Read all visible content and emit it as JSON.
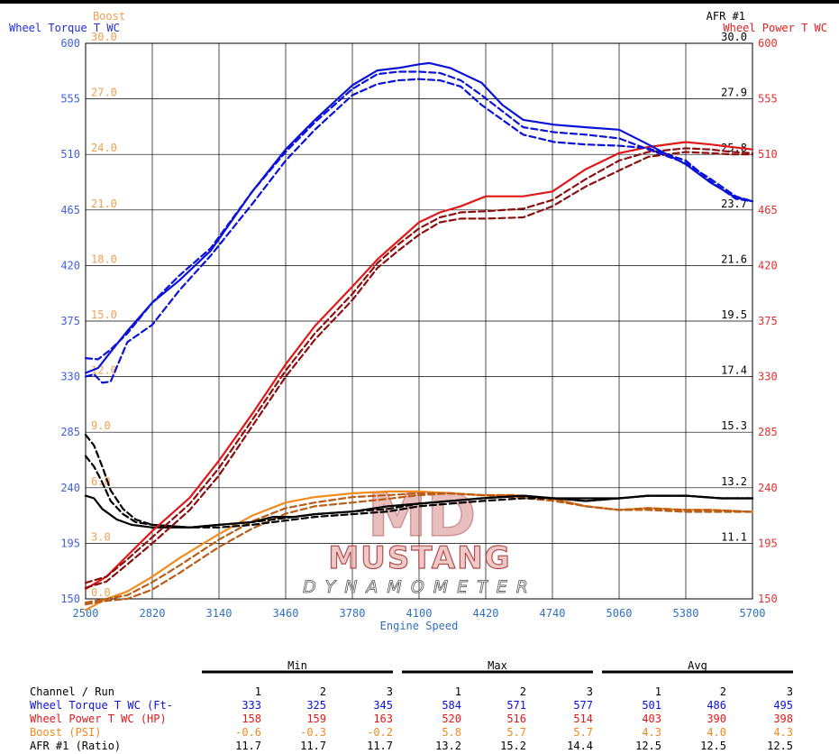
{
  "colors": {
    "torque": "#0a12d8",
    "power": "#e01818",
    "power_dark": "#8b1010",
    "boost": "#f28a1e",
    "boost_dark": "#b85e18",
    "afr": "#000000",
    "torque_axis": "#4060e0",
    "power_axis": "#e03030",
    "boost_axis": "#f0a050",
    "watermark": "#d07878"
  },
  "header": {
    "boost_label": "Boost",
    "torque_label": "Wheel Torque T WC",
    "afr_label": "AFR #1",
    "power_label": "Wheel Power T WC"
  },
  "watermark": {
    "logo_letters": "MD",
    "name": "MUSTANG",
    "sub": "DYNAMOMETER"
  },
  "chart_data": {
    "type": "line",
    "xlabel": "Engine Speed",
    "xlim": [
      2500,
      5700
    ],
    "x_ticks": [
      "2500",
      "2820",
      "3140",
      "3460",
      "3780",
      "4100",
      "4420",
      "4740",
      "5060",
      "5380",
      "5700"
    ],
    "axes": {
      "torque": {
        "label": "Wheel Torque T WC",
        "range": [
          150,
          600
        ],
        "ticks": [
          "150",
          "195",
          "240",
          "285",
          "330",
          "375",
          "420",
          "465",
          "510",
          "555",
          "600"
        ]
      },
      "power": {
        "label": "Wheel Power T WC",
        "range": [
          150,
          600
        ],
        "ticks": [
          "150",
          "195",
          "240",
          "285",
          "330",
          "375",
          "420",
          "465",
          "510",
          "555",
          "600"
        ]
      },
      "boost": {
        "label": "Boost",
        "range": [
          0,
          30
        ],
        "ticks": [
          "0.0",
          "3.0",
          "6.0",
          "9.0",
          "12.0",
          "15.0",
          "18.0",
          "21.0",
          "24.0",
          "27.0",
          "30.0"
        ]
      },
      "afr": {
        "label": "AFR #1",
        "range": [
          9,
          30
        ],
        "ticks": [
          "9.0",
          "11.1",
          "13.2",
          "15.3",
          "17.4",
          "19.5",
          "21.6",
          "23.7",
          "25.8",
          "27.9",
          "30.0"
        ]
      }
    },
    "grid": true,
    "series": [
      {
        "name": "Wheel Torque T WC",
        "run": 1,
        "axis": "torque",
        "style": "solid",
        "x": [
          2500,
          2560,
          2620,
          2700,
          2820,
          2950,
          3100,
          3300,
          3460,
          3600,
          3780,
          3900,
          4000,
          4100,
          4150,
          4250,
          4400,
          4500,
          4600,
          4750,
          4900,
          5060,
          5200,
          5380,
          5500,
          5620,
          5700
        ],
        "y": [
          333,
          337,
          350,
          367,
          390,
          408,
          432,
          480,
          514,
          538,
          566,
          578,
          580,
          583,
          584,
          580,
          568,
          550,
          538,
          534,
          532,
          530,
          518,
          502,
          487,
          475,
          472
        ]
      },
      {
        "name": "Wheel Torque T WC",
        "run": 2,
        "axis": "torque",
        "style": "dashed",
        "x": [
          2500,
          2540,
          2580,
          2620,
          2700,
          2820,
          2950,
          3100,
          3300,
          3460,
          3600,
          3780,
          3900,
          4000,
          4100,
          4200,
          4300,
          4400,
          4500,
          4600,
          4750,
          4900,
          5060,
          5200,
          5380,
          5500,
          5620,
          5700
        ],
        "y": [
          330,
          332,
          325,
          326,
          358,
          372,
          400,
          428,
          470,
          505,
          530,
          558,
          567,
          570,
          571,
          570,
          565,
          550,
          538,
          526,
          520,
          518,
          517,
          515,
          505,
          488,
          474,
          472
        ]
      },
      {
        "name": "Wheel Torque T WC",
        "run": 3,
        "axis": "torque",
        "style": "dashed",
        "x": [
          2500,
          2560,
          2620,
          2700,
          2820,
          2950,
          3100,
          3300,
          3460,
          3600,
          3780,
          3900,
          4000,
          4100,
          4200,
          4300,
          4400,
          4500,
          4600,
          4750,
          4900,
          5060,
          5200,
          5380,
          5500,
          5620,
          5700
        ],
        "y": [
          345,
          344,
          352,
          365,
          390,
          412,
          434,
          480,
          512,
          536,
          563,
          575,
          577,
          577,
          576,
          570,
          558,
          545,
          532,
          528,
          526,
          523,
          514,
          503,
          490,
          476,
          472
        ]
      },
      {
        "name": "Wheel Power T WC",
        "run": 1,
        "axis": "power",
        "style": "solid",
        "x": [
          2500,
          2600,
          2700,
          2820,
          3000,
          3140,
          3300,
          3460,
          3600,
          3780,
          3900,
          4000,
          4100,
          4200,
          4300,
          4420,
          4600,
          4740,
          4900,
          5060,
          5200,
          5380,
          5500,
          5600,
          5700
        ],
        "y": [
          158,
          168,
          185,
          205,
          232,
          262,
          300,
          340,
          371,
          403,
          425,
          440,
          455,
          463,
          468,
          476,
          476,
          480,
          498,
          511,
          516,
          520,
          518,
          516,
          514
        ]
      },
      {
        "name": "Wheel Power T WC",
        "run": 2,
        "axis": "power",
        "style": "dashed",
        "x": [
          2500,
          2600,
          2700,
          2820,
          3000,
          3140,
          3300,
          3460,
          3600,
          3780,
          3900,
          4000,
          4100,
          4200,
          4300,
          4420,
          4600,
          4740,
          4900,
          5060,
          5200,
          5380,
          5500,
          5600,
          5700
        ],
        "y": [
          159,
          164,
          178,
          195,
          222,
          250,
          290,
          330,
          360,
          392,
          418,
          432,
          445,
          455,
          458,
          458,
          459,
          468,
          484,
          497,
          508,
          512,
          511,
          510,
          510
        ]
      },
      {
        "name": "Wheel Power T WC",
        "run": 3,
        "axis": "power",
        "style": "dashed",
        "x": [
          2500,
          2600,
          2700,
          2820,
          3000,
          3140,
          3300,
          3460,
          3600,
          3780,
          3900,
          4000,
          4100,
          4200,
          4300,
          4420,
          4600,
          4740,
          4900,
          5060,
          5200,
          5380,
          5500,
          5600,
          5700
        ],
        "y": [
          163,
          168,
          182,
          200,
          227,
          256,
          295,
          335,
          365,
          397,
          422,
          437,
          450,
          459,
          463,
          464,
          466,
          473,
          490,
          505,
          512,
          515,
          514,
          512,
          511
        ]
      },
      {
        "name": "Boost",
        "run": 1,
        "axis": "boost",
        "style": "solid",
        "x": [
          2500,
          2600,
          2700,
          2820,
          2950,
          3140,
          3300,
          3460,
          3600,
          3780,
          3950,
          4100,
          4250,
          4400,
          4550,
          4740,
          4900,
          5060,
          5200,
          5380,
          5500,
          5700
        ],
        "y": [
          -0.6,
          0.0,
          0.4,
          1.2,
          2.2,
          3.5,
          4.5,
          5.2,
          5.5,
          5.7,
          5.8,
          5.8,
          5.7,
          5.6,
          5.6,
          5.4,
          5.0,
          4.8,
          4.9,
          4.8,
          4.8,
          4.7
        ]
      },
      {
        "name": "Boost",
        "run": 2,
        "axis": "boost",
        "style": "dashed",
        "x": [
          2500,
          2600,
          2700,
          2820,
          2950,
          3140,
          3300,
          3460,
          3600,
          3780,
          3950,
          4100,
          4250,
          4400,
          4550,
          4740,
          4900,
          5060,
          5200,
          5380,
          5500,
          5700
        ],
        "y": [
          -0.3,
          -0.1,
          0.0,
          0.5,
          1.4,
          2.8,
          3.8,
          4.6,
          5.0,
          5.2,
          5.4,
          5.6,
          5.7,
          5.6,
          5.5,
          5.3,
          5.0,
          4.8,
          4.8,
          4.7,
          4.7,
          4.7
        ]
      },
      {
        "name": "Boost",
        "run": 3,
        "axis": "boost",
        "style": "dashed",
        "x": [
          2500,
          2600,
          2700,
          2820,
          2950,
          3140,
          3300,
          3460,
          3600,
          3780,
          3950,
          4100,
          4250,
          4400,
          4550,
          4740,
          4900,
          5060,
          5200,
          5380,
          5500,
          5700
        ],
        "y": [
          -0.2,
          0.0,
          0.2,
          0.9,
          1.8,
          3.2,
          4.2,
          4.9,
          5.2,
          5.5,
          5.6,
          5.7,
          5.7,
          5.6,
          5.6,
          5.4,
          5.0,
          4.8,
          4.9,
          4.8,
          4.8,
          4.7
        ]
      },
      {
        "name": "AFR #1",
        "run": 1,
        "axis": "afr",
        "style": "solid",
        "x": [
          2500,
          2540,
          2580,
          2650,
          2720,
          2820,
          3000,
          3140,
          3300,
          3400,
          3500,
          3600,
          3780,
          3950,
          4100,
          4250,
          4400,
          4600,
          4750,
          4900,
          5060,
          5200,
          5380,
          5550,
          5700
        ],
        "y": [
          12.9,
          12.8,
          12.4,
          12.0,
          11.8,
          11.7,
          11.7,
          11.8,
          11.9,
          12.1,
          12.1,
          12.2,
          12.3,
          12.5,
          12.6,
          12.7,
          12.8,
          12.9,
          12.8,
          12.8,
          12.8,
          12.9,
          12.9,
          12.8,
          12.8
        ]
      },
      {
        "name": "AFR #1",
        "run": 2,
        "axis": "afr",
        "style": "dashed",
        "x": [
          2500,
          2540,
          2580,
          2620,
          2680,
          2740,
          2820,
          3000,
          3140,
          3300,
          3400,
          3500,
          3600,
          3780,
          3950,
          4100,
          4250,
          4400,
          4600,
          4750,
          4900,
          5060,
          5200,
          5380,
          5550,
          5700
        ],
        "y": [
          15.2,
          14.8,
          14.0,
          13.1,
          12.4,
          12.0,
          11.8,
          11.7,
          11.7,
          11.8,
          11.9,
          12.0,
          12.1,
          12.2,
          12.3,
          12.5,
          12.6,
          12.7,
          12.8,
          12.8,
          12.7,
          12.8,
          12.9,
          12.9,
          12.8,
          12.8
        ]
      },
      {
        "name": "AFR #1",
        "run": 3,
        "axis": "afr",
        "style": "dashed",
        "x": [
          2500,
          2540,
          2580,
          2620,
          2680,
          2740,
          2820,
          3000,
          3140,
          3300,
          3400,
          3500,
          3600,
          3780,
          3950,
          4100,
          4250,
          4400,
          4600,
          4750,
          4900,
          5060,
          5200,
          5380,
          5550,
          5700
        ],
        "y": [
          14.4,
          14.0,
          13.4,
          12.7,
          12.2,
          11.9,
          11.8,
          11.7,
          11.8,
          11.9,
          12.0,
          12.1,
          12.2,
          12.3,
          12.4,
          12.6,
          12.7,
          12.8,
          12.9,
          12.8,
          12.7,
          12.8,
          12.9,
          12.9,
          12.8,
          12.8
        ]
      }
    ]
  },
  "table": {
    "groups": [
      "Min",
      "Max",
      "Avg"
    ],
    "header_label": "Channel / Run",
    "run_numbers": [
      "1",
      "2",
      "3",
      "1",
      "2",
      "3",
      "1",
      "2",
      "3"
    ],
    "rows": [
      {
        "label": "Wheel Torque T WC (Ft-",
        "color": "#0a12d8",
        "values": [
          "333",
          "325",
          "345",
          "584",
          "571",
          "577",
          "501",
          "486",
          "495"
        ]
      },
      {
        "label": "Wheel Power T WC (HP)",
        "color": "#e01818",
        "values": [
          "158",
          "159",
          "163",
          "520",
          "516",
          "514",
          "403",
          "390",
          "398"
        ]
      },
      {
        "label": "Boost (PSI)",
        "color": "#f28a1e",
        "values": [
          "-0.6",
          "-0.3",
          "-0.2",
          "5.8",
          "5.7",
          "5.7",
          "4.3",
          "4.0",
          "4.3"
        ]
      },
      {
        "label": "AFR #1 (Ratio)",
        "color": "#000000",
        "values": [
          "11.7",
          "11.7",
          "11.7",
          "13.2",
          "15.2",
          "14.4",
          "12.5",
          "12.5",
          "12.5"
        ]
      }
    ]
  }
}
